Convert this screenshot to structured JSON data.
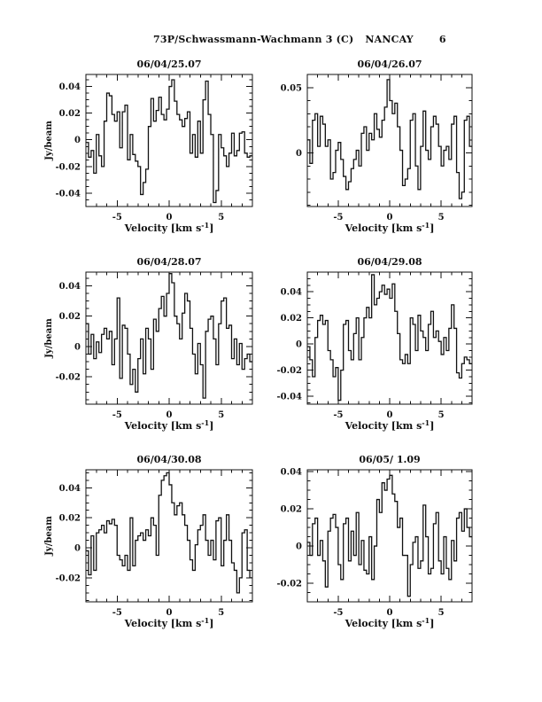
{
  "page": {
    "header": {
      "object": "73P/Schwassmann-Wachmann 3 (C)",
      "telescope": "NANCAY",
      "page_number": "6"
    },
    "ylabel": "Jy/beam",
    "xlabel": {
      "pre": "Velocity [km s",
      "sup": "-1",
      "post": "]"
    }
  },
  "chart_data": [
    {
      "type": "line",
      "style": "histogram-step",
      "title": "06/04/25.07",
      "xlabel": "Velocity [km s^-1]",
      "ylabel": "Jy/beam",
      "show_ylabel": true,
      "xlim": [
        -8,
        8
      ],
      "ylim": [
        -0.05,
        0.049
      ],
      "xticks": [
        {
          "v": -5,
          "t": "-5"
        },
        {
          "v": 0,
          "t": "0"
        },
        {
          "v": 5,
          "t": "5"
        }
      ],
      "xtick_minor_step": 1,
      "yticks": [
        {
          "v": 0.04,
          "t": "0.04"
        },
        {
          "v": 0.02,
          "t": "0.02"
        },
        {
          "v": 0,
          "t": "0"
        },
        {
          "v": -0.02,
          "t": "-0.02"
        },
        {
          "v": -0.04,
          "t": "-0.04"
        }
      ],
      "ytick_minor_step": 0.005,
      "x_start": -8,
      "x_step": 0.25,
      "values": [
        -0.002,
        -0.013,
        -0.008,
        -0.025,
        0.004,
        -0.012,
        -0.02,
        0.014,
        0.035,
        0.033,
        0.019,
        0.014,
        0.021,
        -0.006,
        0.021,
        0.026,
        -0.015,
        0.004,
        -0.011,
        -0.016,
        -0.02,
        -0.041,
        -0.032,
        -0.022,
        0.01,
        0.031,
        0.014,
        0.022,
        0.032,
        0.019,
        0.015,
        0.023,
        0.04,
        0.045,
        0.029,
        0.019,
        0.015,
        0.01,
        0.016,
        0.021,
        -0.01,
        0.004,
        -0.013,
        0.014,
        -0.01,
        0.03,
        0.044,
        0.019,
        0.004,
        -0.047,
        -0.038,
        0.004,
        -0.006,
        -0.012,
        -0.02,
        -0.01,
        0.005,
        -0.012,
        -0.008,
        0.005,
        0.006,
        -0.01,
        -0.013,
        -0.012
      ]
    },
    {
      "type": "line",
      "style": "histogram-step",
      "title": "06/04/26.07",
      "xlabel": "Velocity [km s^-1]",
      "ylabel": "Jy/beam",
      "show_ylabel": false,
      "xlim": [
        -8,
        8
      ],
      "ylim": [
        -0.041,
        0.06
      ],
      "xticks": [
        {
          "v": -5,
          "t": "-5"
        },
        {
          "v": 0,
          "t": "0"
        },
        {
          "v": 5,
          "t": "5"
        }
      ],
      "xtick_minor_step": 1,
      "yticks": [
        {
          "v": 0.05,
          "t": "0.05"
        },
        {
          "v": 0,
          "t": "0"
        }
      ],
      "ytick_minor_step": 0.01,
      "x_start": -8,
      "x_step": 0.25,
      "values": [
        0.01,
        -0.008,
        0.025,
        0.03,
        0.005,
        0.028,
        0.022,
        0.005,
        0.01,
        -0.02,
        -0.015,
        0.002,
        0.008,
        -0.005,
        -0.018,
        -0.028,
        -0.022,
        -0.012,
        -0.005,
        0.002,
        -0.01,
        0.015,
        0.02,
        0.002,
        0.015,
        0.01,
        0.03,
        0.018,
        0.012,
        0.025,
        0.035,
        0.056,
        0.04,
        0.03,
        0.038,
        0.02,
        0.002,
        -0.025,
        -0.02,
        -0.012,
        0.025,
        0.03,
        -0.01,
        -0.028,
        0.005,
        0.032,
        0.002,
        -0.005,
        0.02,
        0.028,
        0.022,
        0.005,
        -0.01,
        0.002,
        0.005,
        -0.005,
        0.022,
        0.028,
        -0.015,
        -0.035,
        -0.03,
        0.025,
        0.028,
        0.005
      ]
    },
    {
      "type": "line",
      "style": "histogram-step",
      "title": "06/04/28.07",
      "xlabel": "Velocity [km s^-1]",
      "ylabel": "Jy/beam",
      "show_ylabel": true,
      "xlim": [
        -8,
        8
      ],
      "ylim": [
        -0.038,
        0.049
      ],
      "xticks": [
        {
          "v": -5,
          "t": "-5"
        },
        {
          "v": 0,
          "t": "0"
        },
        {
          "v": 5,
          "t": "5"
        }
      ],
      "xtick_minor_step": 1,
      "yticks": [
        {
          "v": 0.04,
          "t": "0.04"
        },
        {
          "v": 0.02,
          "t": "0.02"
        },
        {
          "v": 0,
          "t": "0"
        },
        {
          "v": -0.02,
          "t": "-0.02"
        }
      ],
      "ytick_minor_step": 0.005,
      "x_start": -8,
      "x_step": 0.25,
      "values": [
        0.015,
        -0.005,
        0.008,
        -0.008,
        0.003,
        -0.004,
        0.008,
        0.012,
        0.005,
        0.01,
        -0.012,
        0.005,
        0.032,
        -0.021,
        0.014,
        0.012,
        -0.005,
        -0.025,
        -0.015,
        -0.03,
        -0.008,
        0.005,
        -0.018,
        0.012,
        0.005,
        -0.015,
        0.018,
        0.01,
        0.025,
        0.033,
        0.02,
        0.035,
        0.048,
        0.042,
        0.02,
        0.015,
        0.005,
        0.022,
        0.035,
        0.03,
        0.012,
        -0.005,
        -0.018,
        0.002,
        -0.012,
        -0.034,
        0.01,
        0.018,
        0.02,
        0.005,
        -0.012,
        0.015,
        0.03,
        0.032,
        0.012,
        0.014,
        -0.008,
        0.005,
        -0.012,
        0.002,
        -0.015,
        -0.008,
        -0.005,
        -0.01
      ]
    },
    {
      "type": "line",
      "style": "histogram-step",
      "title": "06/04/29.08",
      "xlabel": "Velocity [km s^-1]",
      "ylabel": "Jy/beam",
      "show_ylabel": false,
      "xlim": [
        -8,
        8
      ],
      "ylim": [
        -0.046,
        0.055
      ],
      "xticks": [
        {
          "v": -5,
          "t": "-5"
        },
        {
          "v": 0,
          "t": "0"
        },
        {
          "v": 5,
          "t": "5"
        }
      ],
      "xtick_minor_step": 1,
      "yticks": [
        {
          "v": 0.04,
          "t": "0.04"
        },
        {
          "v": 0.02,
          "t": "0.02"
        },
        {
          "v": 0,
          "t": "0"
        },
        {
          "v": -0.02,
          "t": "-0.02"
        },
        {
          "v": -0.04,
          "t": "-0.04"
        }
      ],
      "ytick_minor_step": 0.005,
      "x_start": -8,
      "x_step": 0.25,
      "values": [
        -0.002,
        -0.012,
        -0.025,
        0.005,
        0.018,
        0.022,
        0.015,
        0.018,
        -0.005,
        -0.012,
        -0.025,
        -0.018,
        -0.043,
        -0.02,
        0.015,
        0.018,
        -0.005,
        -0.012,
        0.008,
        0.02,
        -0.012,
        0.005,
        0.02,
        0.028,
        0.02,
        0.053,
        0.03,
        0.035,
        0.04,
        0.045,
        0.038,
        0.042,
        0.035,
        0.046,
        0.025,
        0.008,
        -0.012,
        -0.015,
        -0.008,
        -0.015,
        0.02,
        0.015,
        -0.005,
        0.022,
        0.01,
        0.005,
        -0.005,
        0.015,
        0.025,
        0.005,
        0.01,
        0.002,
        -0.008,
        0.005,
        -0.005,
        0.012,
        0.03,
        0.012,
        -0.022,
        -0.026,
        -0.015,
        -0.01,
        -0.012,
        -0.015
      ]
    },
    {
      "type": "line",
      "style": "histogram-step",
      "title": "06/04/30.08",
      "xlabel": "Velocity [km s^-1]",
      "ylabel": "Jy/beam",
      "show_ylabel": true,
      "xlim": [
        -8,
        8
      ],
      "ylim": [
        -0.036,
        0.052
      ],
      "xticks": [
        {
          "v": -5,
          "t": "-5"
        },
        {
          "v": 0,
          "t": "0"
        },
        {
          "v": 5,
          "t": "5"
        }
      ],
      "xtick_minor_step": 1,
      "yticks": [
        {
          "v": 0.04,
          "t": "0.04"
        },
        {
          "v": 0.02,
          "t": "0.02"
        },
        {
          "v": 0,
          "t": "0"
        },
        {
          "v": -0.02,
          "t": "-0.02"
        }
      ],
      "ytick_minor_step": 0.005,
      "x_start": -8,
      "x_step": 0.25,
      "values": [
        -0.002,
        -0.018,
        0.008,
        -0.015,
        0.01,
        0.012,
        0.015,
        0.01,
        0.018,
        0.016,
        0.019,
        0.015,
        -0.005,
        -0.008,
        -0.012,
        -0.005,
        -0.015,
        0.02,
        -0.012,
        0.005,
        0.008,
        0.01,
        0.005,
        0.012,
        0.008,
        0.02,
        0.015,
        -0.005,
        0.035,
        0.045,
        0.048,
        0.05,
        0.042,
        0.03,
        0.022,
        0.028,
        0.03,
        0.022,
        0.015,
        0.005,
        -0.008,
        -0.015,
        0.002,
        0.012,
        0.015,
        0.022,
        0.005,
        -0.005,
        0.005,
        -0.008,
        0.018,
        0.02,
        -0.012,
        0.005,
        0.022,
        0.005,
        -0.01,
        -0.015,
        -0.03,
        -0.02,
        0.01,
        0.012,
        -0.015,
        -0.02
      ]
    },
    {
      "type": "line",
      "style": "histogram-step",
      "title": "06/05/ 1.09",
      "xlabel": "Velocity [km s^-1]",
      "ylabel": "Jy/beam",
      "show_ylabel": false,
      "xlim": [
        -8,
        8
      ],
      "ylim": [
        -0.03,
        0.041
      ],
      "xticks": [
        {
          "v": -5,
          "t": "-5"
        },
        {
          "v": 0,
          "t": "0"
        },
        {
          "v": 5,
          "t": "5"
        }
      ],
      "xtick_minor_step": 1,
      "yticks": [
        {
          "v": 0.04,
          "t": "0.04"
        },
        {
          "v": 0.02,
          "t": "0.02"
        },
        {
          "v": 0,
          "t": "0"
        },
        {
          "v": -0.02,
          "t": "-0.02"
        }
      ],
      "ytick_minor_step": 0.005,
      "x_start": -8,
      "x_step": 0.25,
      "values": [
        0.002,
        -0.005,
        0.012,
        0.015,
        -0.005,
        0.003,
        -0.008,
        -0.022,
        0.008,
        0.015,
        0.017,
        0.01,
        -0.01,
        -0.018,
        0.012,
        0.015,
        -0.008,
        0.008,
        -0.005,
        0.018,
        -0.01,
        0.003,
        -0.013,
        -0.015,
        0.005,
        -0.018,
        0.0,
        0.025,
        0.018,
        0.034,
        0.03,
        0.036,
        0.038,
        0.028,
        0.024,
        0.01,
        0.015,
        -0.005,
        -0.005,
        -0.027,
        -0.01,
        0.002,
        0.005,
        -0.012,
        -0.008,
        0.022,
        0.005,
        -0.015,
        -0.012,
        0.012,
        0.018,
        -0.008,
        -0.015,
        0.005,
        -0.012,
        -0.018,
        0.003,
        -0.008,
        0.015,
        0.018,
        0.008,
        0.02,
        0.01,
        0.005
      ]
    }
  ]
}
